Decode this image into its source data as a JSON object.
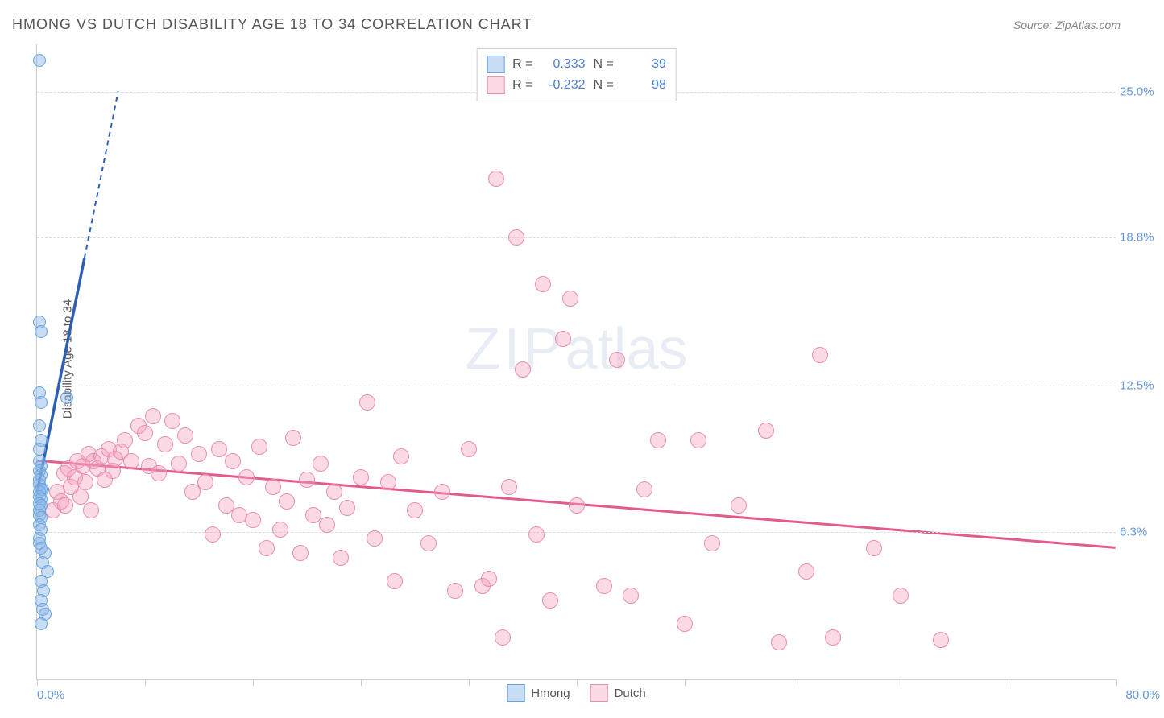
{
  "title": "HMONG VS DUTCH DISABILITY AGE 18 TO 34 CORRELATION CHART",
  "source": "Source: ZipAtlas.com",
  "watermark_zip": "ZIP",
  "watermark_atlas": "atlas",
  "ylabel": "Disability Age 18 to 34",
  "chart": {
    "type": "scatter",
    "xlim": [
      0,
      80
    ],
    "ylim": [
      0,
      27
    ],
    "x_tick_positions": [
      0,
      8,
      16,
      24,
      32,
      40,
      48,
      56,
      64,
      72,
      80
    ],
    "y_grid": [
      6.3,
      12.5,
      18.8,
      25.0
    ],
    "y_grid_labels": [
      "6.3%",
      "12.5%",
      "18.8%",
      "25.0%"
    ],
    "x_min_label": "0.0%",
    "x_max_label": "80.0%",
    "background_color": "#ffffff",
    "grid_color": "#dddddd",
    "axis_color": "#cccccc",
    "label_color": "#6699dd"
  },
  "series": {
    "hmong": {
      "label": "Hmong",
      "color_fill": "rgba(135,180,230,0.45)",
      "color_stroke": "#6aa3db",
      "marker_size": 16,
      "R": "0.333",
      "N": "39",
      "trendline_color": "#2c5fb3",
      "trendline": {
        "x1": 0,
        "y1": 8.0,
        "x2": 6,
        "y2": 25,
        "dash_after_x": 3.5
      },
      "points": [
        [
          0.2,
          26.3
        ],
        [
          0.2,
          15.2
        ],
        [
          0.3,
          14.8
        ],
        [
          0.2,
          12.2
        ],
        [
          0.3,
          11.8
        ],
        [
          2.2,
          12.0
        ],
        [
          0.2,
          10.8
        ],
        [
          0.3,
          10.2
        ],
        [
          0.2,
          9.8
        ],
        [
          0.2,
          9.3
        ],
        [
          0.3,
          9.1
        ],
        [
          0.2,
          8.9
        ],
        [
          0.3,
          8.7
        ],
        [
          0.2,
          8.5
        ],
        [
          0.2,
          8.3
        ],
        [
          0.3,
          8.1
        ],
        [
          0.4,
          8.1
        ],
        [
          0.2,
          8.0
        ],
        [
          0.2,
          7.8
        ],
        [
          0.3,
          7.7
        ],
        [
          0.2,
          7.5
        ],
        [
          0.3,
          7.4
        ],
        [
          0.2,
          7.2
        ],
        [
          0.2,
          7.0
        ],
        [
          0.3,
          6.9
        ],
        [
          0.2,
          6.6
        ],
        [
          0.3,
          6.4
        ],
        [
          0.2,
          6.0
        ],
        [
          0.2,
          5.8
        ],
        [
          0.3,
          5.6
        ],
        [
          0.6,
          5.4
        ],
        [
          0.4,
          5.0
        ],
        [
          0.8,
          4.6
        ],
        [
          0.3,
          4.2
        ],
        [
          0.5,
          3.8
        ],
        [
          0.3,
          3.4
        ],
        [
          0.4,
          3.0
        ],
        [
          0.6,
          2.8
        ],
        [
          0.3,
          2.4
        ]
      ]
    },
    "dutch": {
      "label": "Dutch",
      "color_fill": "rgba(245,160,190,0.4)",
      "color_stroke": "#e88fb0",
      "marker_size": 20,
      "R": "-0.232",
      "N": "98",
      "trendline_color": "#e35a8f",
      "trendline": {
        "x1": 0,
        "y1": 9.3,
        "x2": 80,
        "y2": 5.6
      },
      "points": [
        [
          1.2,
          7.2
        ],
        [
          1.5,
          8.0
        ],
        [
          1.8,
          7.6
        ],
        [
          2.0,
          8.8
        ],
        [
          2.1,
          7.4
        ],
        [
          2.3,
          9.0
        ],
        [
          2.5,
          8.2
        ],
        [
          2.8,
          8.6
        ],
        [
          3.0,
          9.3
        ],
        [
          3.2,
          7.8
        ],
        [
          3.4,
          9.1
        ],
        [
          3.6,
          8.4
        ],
        [
          3.8,
          9.6
        ],
        [
          4.0,
          7.2
        ],
        [
          4.2,
          9.3
        ],
        [
          4.5,
          9.0
        ],
        [
          4.8,
          9.5
        ],
        [
          5.0,
          8.5
        ],
        [
          5.3,
          9.8
        ],
        [
          5.6,
          8.9
        ],
        [
          5.8,
          9.4
        ],
        [
          6.2,
          9.7
        ],
        [
          6.5,
          10.2
        ],
        [
          7.0,
          9.3
        ],
        [
          7.5,
          10.8
        ],
        [
          8.0,
          10.5
        ],
        [
          8.3,
          9.1
        ],
        [
          8.6,
          11.2
        ],
        [
          9.0,
          8.8
        ],
        [
          9.5,
          10.0
        ],
        [
          10.0,
          11.0
        ],
        [
          10.5,
          9.2
        ],
        [
          11.0,
          10.4
        ],
        [
          11.5,
          8.0
        ],
        [
          12.0,
          9.6
        ],
        [
          12.5,
          8.4
        ],
        [
          13.0,
          6.2
        ],
        [
          13.5,
          9.8
        ],
        [
          14.0,
          7.4
        ],
        [
          14.5,
          9.3
        ],
        [
          15.0,
          7.0
        ],
        [
          15.5,
          8.6
        ],
        [
          16.0,
          6.8
        ],
        [
          16.5,
          9.9
        ],
        [
          17.0,
          5.6
        ],
        [
          17.5,
          8.2
        ],
        [
          18.0,
          6.4
        ],
        [
          18.5,
          7.6
        ],
        [
          19.0,
          10.3
        ],
        [
          19.5,
          5.4
        ],
        [
          20.0,
          8.5
        ],
        [
          20.5,
          7.0
        ],
        [
          21.0,
          9.2
        ],
        [
          21.5,
          6.6
        ],
        [
          22.0,
          8.0
        ],
        [
          22.5,
          5.2
        ],
        [
          23.0,
          7.3
        ],
        [
          24.0,
          8.6
        ],
        [
          24.5,
          11.8
        ],
        [
          25.0,
          6.0
        ],
        [
          26.0,
          8.4
        ],
        [
          26.5,
          4.2
        ],
        [
          27.0,
          9.5
        ],
        [
          28.0,
          7.2
        ],
        [
          29.0,
          5.8
        ],
        [
          30.0,
          8.0
        ],
        [
          31.0,
          3.8
        ],
        [
          32.0,
          9.8
        ],
        [
          33.0,
          4.0
        ],
        [
          33.5,
          4.3
        ],
        [
          34.0,
          21.3
        ],
        [
          34.5,
          1.8
        ],
        [
          35.0,
          8.2
        ],
        [
          35.5,
          18.8
        ],
        [
          36.0,
          13.2
        ],
        [
          37.0,
          6.2
        ],
        [
          37.5,
          16.8
        ],
        [
          38.0,
          3.4
        ],
        [
          39.0,
          14.5
        ],
        [
          39.5,
          16.2
        ],
        [
          40.0,
          7.4
        ],
        [
          42.0,
          4.0
        ],
        [
          43.0,
          13.6
        ],
        [
          44.0,
          3.6
        ],
        [
          45.0,
          8.1
        ],
        [
          46.0,
          10.2
        ],
        [
          48.0,
          2.4
        ],
        [
          49.0,
          10.2
        ],
        [
          50.0,
          5.8
        ],
        [
          52.0,
          7.4
        ],
        [
          54.0,
          10.6
        ],
        [
          55.0,
          1.6
        ],
        [
          57.0,
          4.6
        ],
        [
          58.0,
          13.8
        ],
        [
          59.0,
          1.8
        ],
        [
          62.0,
          5.6
        ],
        [
          64.0,
          3.6
        ],
        [
          67.0,
          1.7
        ]
      ]
    }
  },
  "legend_labels": {
    "R": "R =",
    "N": "N ="
  }
}
